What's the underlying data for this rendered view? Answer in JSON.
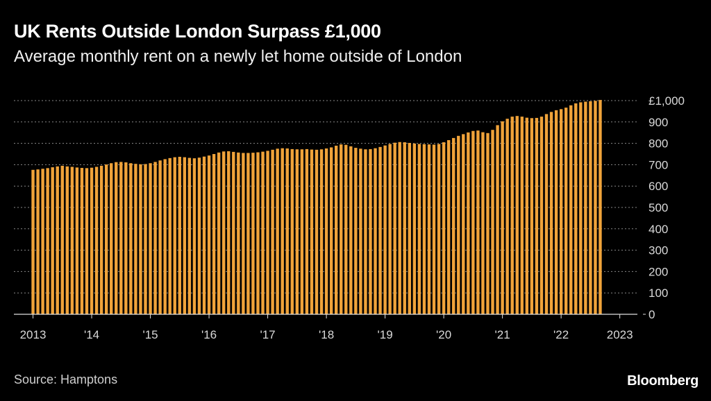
{
  "header": {
    "title": "UK Rents Outside London Surpass £1,000",
    "subtitle": "Average monthly rent on a newly let home outside of London"
  },
  "footer": {
    "source": "Source: Hamptons",
    "brand": "Bloomberg"
  },
  "chart_data": {
    "type": "bar",
    "frequency": "monthly",
    "start": "2013-01",
    "bar_color": "#f0a33a",
    "grid": true,
    "ylim": [
      0,
      1000
    ],
    "yticks": [
      0,
      100,
      200,
      300,
      400,
      500,
      600,
      700,
      800,
      900,
      1000
    ],
    "ytick_labels": [
      "0",
      "100",
      "200",
      "300",
      "400",
      "500",
      "600",
      "700",
      "800",
      "900",
      "£1,000"
    ],
    "xtick_labels": [
      "2013",
      "'14",
      "'15",
      "'16",
      "'17",
      "'18",
      "'19",
      "'20",
      "'21",
      "'22",
      "2023"
    ],
    "values": [
      676,
      678,
      681,
      684,
      688,
      692,
      695,
      692,
      690,
      687,
      685,
      684,
      686,
      690,
      695,
      701,
      707,
      712,
      713,
      711,
      707,
      704,
      702,
      703,
      707,
      713,
      720,
      726,
      731,
      735,
      737,
      735,
      732,
      730,
      733,
      738,
      743,
      750,
      757,
      762,
      763,
      760,
      757,
      755,
      755,
      756,
      758,
      761,
      765,
      770,
      775,
      777,
      776,
      773,
      772,
      772,
      773,
      771,
      770,
      772,
      776,
      781,
      789,
      795,
      793,
      786,
      779,
      775,
      772,
      773,
      777,
      783,
      790,
      797,
      803,
      806,
      805,
      802,
      799,
      797,
      796,
      795,
      794,
      797,
      805,
      815,
      825,
      835,
      843,
      851,
      858,
      860,
      852,
      848,
      863,
      885,
      903,
      915,
      925,
      928,
      925,
      920,
      918,
      919,
      925,
      937,
      947,
      955,
      960,
      967,
      978,
      987,
      992,
      995,
      997,
      999,
      1003
    ]
  }
}
